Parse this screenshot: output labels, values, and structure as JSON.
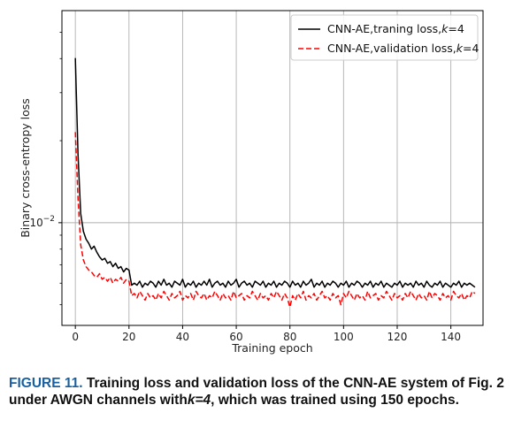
{
  "chart_data": {
    "type": "line",
    "xlabel": "Training epoch",
    "ylabel": "Binary cross-entropy loss",
    "xlim": [
      -5,
      152
    ],
    "ylim": [
      0.0042,
      0.06
    ],
    "yscale": "log",
    "grid": true,
    "legend_position": "top-right",
    "x_ticks": [
      0,
      20,
      40,
      60,
      80,
      100,
      120,
      140
    ],
    "x_tick_labels": [
      "0",
      "20",
      "40",
      "60",
      "80",
      "100",
      "120",
      "140"
    ],
    "y_tick_label_base": "10",
    "y_tick_label_exp": "−2",
    "y_tick_value": 0.01,
    "series": [
      {
        "name_prefix": "CNN-AE,traning loss,",
        "name_k": "k",
        "name_suffix": "=4",
        "color": "#000000",
        "dash": "solid",
        "values": [
          0.0402,
          0.0178,
          0.0108,
          0.0093,
          0.0087,
          0.0084,
          0.008,
          0.0082,
          0.0078,
          0.0075,
          0.0073,
          0.0074,
          0.0071,
          0.0072,
          0.0069,
          0.0071,
          0.0068,
          0.0069,
          0.0066,
          0.0068,
          0.0067,
          0.0059,
          0.006,
          0.0059,
          0.0061,
          0.0058,
          0.006,
          0.0059,
          0.0061,
          0.006,
          0.0058,
          0.0061,
          0.0059,
          0.0062,
          0.0059,
          0.006,
          0.0058,
          0.0061,
          0.006,
          0.0059,
          0.0062,
          0.0058,
          0.006,
          0.0059,
          0.0061,
          0.0058,
          0.006,
          0.0059,
          0.0061,
          0.0059,
          0.0062,
          0.0058,
          0.006,
          0.0061,
          0.0059,
          0.006,
          0.0058,
          0.0061,
          0.0059,
          0.006,
          0.0062,
          0.0058,
          0.006,
          0.0061,
          0.0059,
          0.006,
          0.0058,
          0.0061,
          0.006,
          0.0059,
          0.0061,
          0.0058,
          0.006,
          0.0059,
          0.0061,
          0.0058,
          0.006,
          0.0059,
          0.0061,
          0.006,
          0.0058,
          0.0061,
          0.0059,
          0.006,
          0.0058,
          0.0061,
          0.0059,
          0.006,
          0.0062,
          0.0058,
          0.006,
          0.0059,
          0.0061,
          0.0058,
          0.006,
          0.0059,
          0.0061,
          0.006,
          0.0058,
          0.006,
          0.0059,
          0.0061,
          0.0058,
          0.006,
          0.0059,
          0.0061,
          0.006,
          0.0058,
          0.006,
          0.0059,
          0.0061,
          0.0058,
          0.006,
          0.0059,
          0.0061,
          0.0058,
          0.006,
          0.0059,
          0.0058,
          0.006,
          0.0059,
          0.0061,
          0.0058,
          0.006,
          0.0059,
          0.006,
          0.0058,
          0.0061,
          0.0059,
          0.006,
          0.0058,
          0.0061,
          0.0059,
          0.0058,
          0.006,
          0.0059,
          0.0061,
          0.0058,
          0.006,
          0.0059,
          0.0058,
          0.006,
          0.0059,
          0.0061,
          0.0058,
          0.006,
          0.0059,
          0.006,
          0.0059,
          0.0058
        ]
      },
      {
        "name_prefix": "CNN-AE,validation loss,",
        "name_k": "k",
        "name_suffix": "=4",
        "color": "#ff0000",
        "dash": "dashed",
        "values": [
          0.0215,
          0.0123,
          0.0083,
          0.0073,
          0.0069,
          0.0067,
          0.0066,
          0.0064,
          0.0063,
          0.0065,
          0.0062,
          0.0063,
          0.0061,
          0.0063,
          0.006,
          0.0062,
          0.0061,
          0.0063,
          0.006,
          0.0062,
          0.0061,
          0.0054,
          0.0055,
          0.0053,
          0.0056,
          0.0054,
          0.0052,
          0.0055,
          0.0053,
          0.0054,
          0.0052,
          0.0055,
          0.0053,
          0.0056,
          0.0054,
          0.0052,
          0.0055,
          0.0053,
          0.0054,
          0.0056,
          0.0052,
          0.0054,
          0.0053,
          0.0055,
          0.0052,
          0.0056,
          0.0054,
          0.0053,
          0.0055,
          0.0052,
          0.0054,
          0.0053,
          0.0056,
          0.0054,
          0.0052,
          0.0055,
          0.0053,
          0.0054,
          0.0052,
          0.0056,
          0.0053,
          0.0054,
          0.0055,
          0.0052,
          0.0054,
          0.0053,
          0.0056,
          0.0054,
          0.0052,
          0.0055,
          0.0053,
          0.0054,
          0.0052,
          0.0055,
          0.0053,
          0.0056,
          0.0054,
          0.0052,
          0.0055,
          0.0053,
          0.0049,
          0.0054,
          0.0052,
          0.0055,
          0.0053,
          0.0056,
          0.0052,
          0.0054,
          0.0053,
          0.0055,
          0.0052,
          0.0054,
          0.0056,
          0.0053,
          0.0054,
          0.0052,
          0.0055,
          0.0053,
          0.0054,
          0.005,
          0.0055,
          0.0053,
          0.0056,
          0.0054,
          0.0052,
          0.0055,
          0.0053,
          0.0054,
          0.0052,
          0.0056,
          0.0053,
          0.0054,
          0.0055,
          0.0052,
          0.0054,
          0.0053,
          0.0056,
          0.0054,
          0.0052,
          0.0055,
          0.0053,
          0.0054,
          0.0052,
          0.0055,
          0.0053,
          0.0056,
          0.0054,
          0.0052,
          0.0055,
          0.0053,
          0.0054,
          0.0052,
          0.0056,
          0.0053,
          0.0055,
          0.0054,
          0.0052,
          0.0055,
          0.0053,
          0.0054,
          0.0052,
          0.0056,
          0.0054,
          0.0053,
          0.0055,
          0.0052,
          0.0054,
          0.0053,
          0.0056,
          0.0055
        ]
      }
    ]
  },
  "caption": {
    "figure_label": "FIGURE 11.",
    "text_1": " Training loss and validation loss of the CNN-AE system of Fig. 2 under AWGN channels with",
    "k_var": "k=4",
    "text_2": ", which was trained using 150 epochs."
  }
}
